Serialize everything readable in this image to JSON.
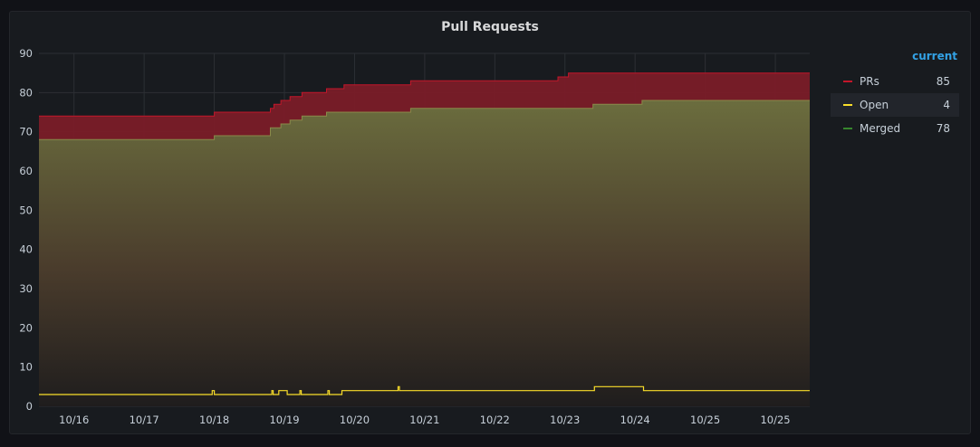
{
  "panel": {
    "title": "Pull Requests"
  },
  "legend": {
    "header": "current",
    "items": [
      {
        "name": "PRs",
        "value": "85",
        "color": "#c4162a"
      },
      {
        "name": "Open",
        "value": "4",
        "color": "#fade2a"
      },
      {
        "name": "Merged",
        "value": "78",
        "color": "#37872d"
      }
    ]
  },
  "chart_data": {
    "type": "area",
    "title": "Pull Requests",
    "xlabel": "",
    "ylabel": "",
    "ylim": [
      0,
      90
    ],
    "yticks": [
      0,
      10,
      20,
      30,
      40,
      50,
      60,
      70,
      80,
      90
    ],
    "xticks": [
      "10/16",
      "10/17",
      "10/18",
      "10/19",
      "10/20",
      "10/21",
      "10/22",
      "10/23",
      "10/24",
      "10/25",
      "10/25"
    ],
    "x_is_day_index": true,
    "xlim": [
      0,
      10.99
    ],
    "grid": true,
    "legend_position": "right",
    "series": [
      {
        "name": "PRs",
        "color": "#c4162a",
        "fill": true,
        "x": [
          0,
          2.5,
          3.3,
          3.35,
          3.45,
          3.58,
          3.75,
          4.1,
          4.35,
          5.3,
          7.4,
          7.55,
          9.0,
          10.99
        ],
        "values": [
          74,
          75,
          76,
          77,
          78,
          79,
          80,
          81,
          82,
          83,
          84,
          85,
          85,
          85
        ]
      },
      {
        "name": "Merged",
        "color": "#37872d",
        "fill": true,
        "x": [
          0,
          2.5,
          3.3,
          3.45,
          3.58,
          3.75,
          4.1,
          5.3,
          7.9,
          8.6,
          10.99
        ],
        "values": [
          68,
          69,
          71,
          72,
          73,
          74,
          75,
          76,
          77,
          78,
          78
        ]
      },
      {
        "name": "Open",
        "color": "#fade2a",
        "fill": false,
        "x": [
          0,
          2.45,
          2.47,
          2.5,
          3.3,
          3.32,
          3.34,
          3.4,
          3.42,
          3.52,
          3.54,
          3.58,
          3.7,
          3.72,
          3.74,
          4.1,
          4.12,
          4.14,
          4.3,
          4.32,
          5.1,
          5.12,
          5.14,
          7.0,
          7.9,
          7.92,
          8.6,
          8.62,
          10.99
        ],
        "values": [
          3,
          3,
          4,
          3,
          3,
          4,
          3,
          3,
          4,
          4,
          3,
          3,
          3,
          4,
          3,
          3,
          4,
          3,
          3,
          4,
          4,
          5,
          4,
          4,
          4,
          5,
          5,
          4,
          4
        ]
      }
    ]
  }
}
